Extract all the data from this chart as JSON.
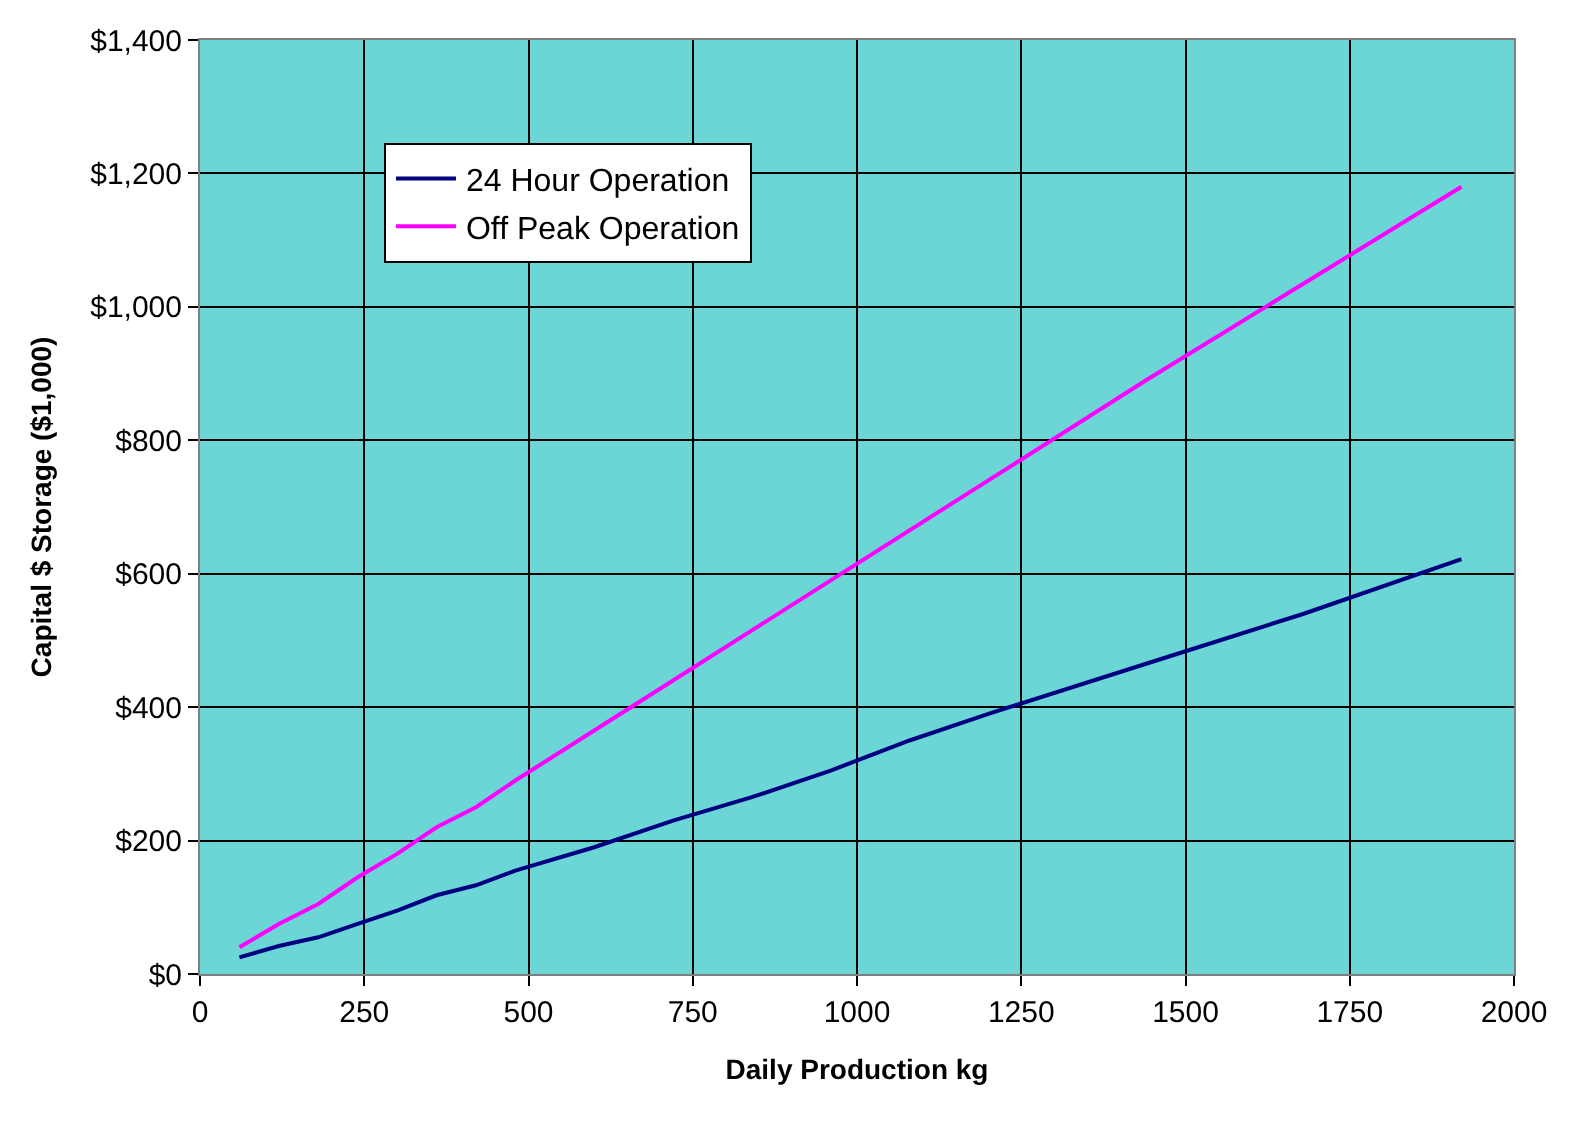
{
  "chart_data": {
    "type": "line",
    "xlabel": "Daily Production kg",
    "ylabel": "Capital $ Storage ($1,000)",
    "xlim": [
      0,
      2000
    ],
    "xticks": [
      0,
      250,
      500,
      750,
      1000,
      1250,
      1500,
      1750,
      2000
    ],
    "ylim": [
      0,
      1400
    ],
    "yticks": [
      {
        "value": 0,
        "label": "$0"
      },
      {
        "value": 200,
        "label": "$200"
      },
      {
        "value": 400,
        "label": "$400"
      },
      {
        "value": 600,
        "label": "$600"
      },
      {
        "value": 800,
        "label": "$800"
      },
      {
        "value": 1000,
        "label": "$1,000"
      },
      {
        "value": 1200,
        "label": "$1,200"
      },
      {
        "value": 1400,
        "label": "$1,400"
      }
    ],
    "grid": true,
    "legend": "top left",
    "marker": "none",
    "line_style": "solid",
    "series": [
      {
        "name": "24 Hour Operation",
        "color": "#000080",
        "x": [
          60,
          120,
          180,
          240,
          300,
          360,
          420,
          480,
          600,
          720,
          840,
          960,
          1080,
          1200,
          1440,
          1680,
          1920
        ],
        "values": [
          25,
          42,
          55,
          75,
          95,
          118,
          133,
          155,
          190,
          230,
          265,
          305,
          350,
          390,
          465,
          540,
          622
        ]
      },
      {
        "name": "Off Peak Operation",
        "color": "#ff00ff",
        "x": [
          60,
          120,
          180,
          240,
          300,
          360,
          420,
          480,
          600,
          720,
          840,
          960,
          1200,
          1440,
          1680,
          1920
        ],
        "values": [
          40,
          75,
          105,
          145,
          180,
          220,
          250,
          290,
          365,
          440,
          515,
          590,
          740,
          890,
          1035,
          1180
        ]
      }
    ]
  }
}
